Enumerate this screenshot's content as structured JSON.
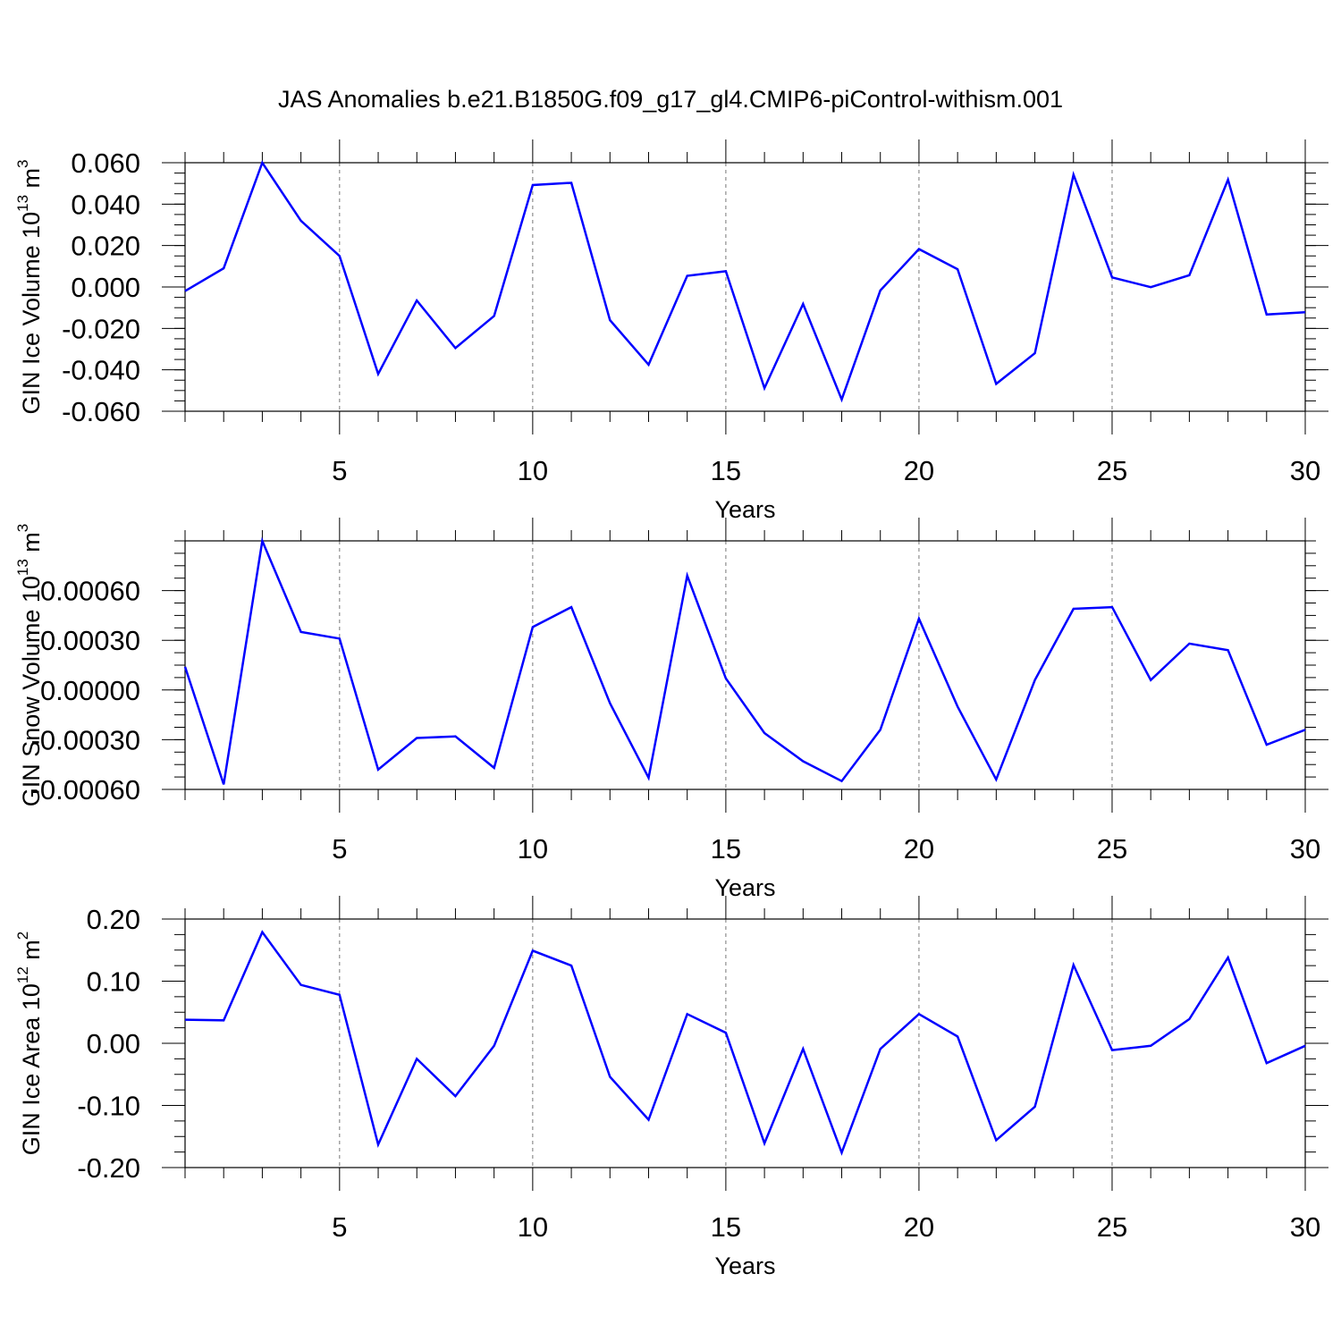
{
  "title": "JAS Anomalies b.e21.B1850G.f09_g17_gl4.CMIP6-piControl-withism.001",
  "colors": {
    "line": "#0000ff",
    "axis": "#000000",
    "grid": "#777777"
  },
  "chart_data": [
    {
      "type": "line",
      "ylabel": "GIN Ice Volume",
      "ylabel_unit_base": "10",
      "ylabel_unit_exp": "13",
      "ylabel_unit_suffix": "m",
      "ylabel_unit_suffix_exp": "3",
      "xlabel": "Years",
      "xlim": [
        1,
        30
      ],
      "ylim": [
        -0.06,
        0.06
      ],
      "yticks": [
        -0.06,
        -0.04,
        -0.02,
        0.0,
        0.02,
        0.04,
        0.06
      ],
      "ytick_labels": [
        "-0.060",
        "-0.040",
        "-0.020",
        "0.000",
        "0.020",
        "0.040",
        "0.060"
      ],
      "ytick_minor": 0.005,
      "xticks": [
        5,
        10,
        15,
        20,
        25,
        30
      ],
      "xtick_labels": [
        "5",
        "10",
        "15",
        "20",
        "25",
        "30"
      ],
      "grid_x": [
        5,
        10,
        15,
        20,
        25
      ],
      "series": [
        {
          "name": "GIN Ice Volume",
          "x": [
            1,
            2,
            3,
            4,
            5,
            6,
            7,
            8,
            9,
            10,
            11,
            12,
            13,
            14,
            15,
            16,
            17,
            18,
            19,
            20,
            21,
            22,
            23,
            24,
            25,
            26,
            27,
            28,
            29,
            30
          ],
          "values": [
            -0.002,
            0.009,
            0.06,
            0.032,
            0.015,
            -0.042,
            -0.0065,
            -0.0295,
            -0.014,
            0.0492,
            0.0503,
            -0.016,
            -0.0375,
            0.0054,
            0.0076,
            -0.0488,
            -0.0082,
            -0.0543,
            -0.0017,
            0.0183,
            0.0086,
            -0.0468,
            -0.032,
            0.0542,
            0.0046,
            -0.0001,
            0.0057,
            0.0518,
            -0.0133,
            -0.0122
          ]
        }
      ]
    },
    {
      "type": "line",
      "ylabel": "GIN Snow Volume",
      "ylabel_unit_base": "10",
      "ylabel_unit_exp": "13",
      "ylabel_unit_suffix": "m",
      "ylabel_unit_suffix_exp": "3",
      "xlabel": "Years",
      "xlim": [
        1,
        30
      ],
      "ylim": [
        -0.0006,
        0.0009
      ],
      "yticks": [
        -0.0006,
        -0.0003,
        0.0,
        0.0003,
        0.0006
      ],
      "ytick_labels": [
        "-0.00060",
        "-0.00030",
        "0.00000",
        "0.00030",
        "0.00060"
      ],
      "ytick_minor": 7.5e-05,
      "xticks": [
        5,
        10,
        15,
        20,
        25,
        30
      ],
      "xtick_labels": [
        "5",
        "10",
        "15",
        "20",
        "25",
        "30"
      ],
      "grid_x": [
        5,
        10,
        15,
        20,
        25
      ],
      "series": [
        {
          "name": "GIN Snow Volume",
          "x": [
            1,
            2,
            3,
            4,
            5,
            6,
            7,
            8,
            9,
            10,
            11,
            12,
            13,
            14,
            15,
            16,
            17,
            18,
            19,
            20,
            21,
            22,
            23,
            24,
            25,
            26,
            27,
            28,
            29,
            30
          ],
          "values": [
            0.00014,
            -0.00057,
            0.0009,
            0.00035,
            0.00031,
            -0.00048,
            -0.00029,
            -0.00028,
            -0.00047,
            0.00038,
            0.0005,
            -8e-05,
            -0.00053,
            0.00069,
            7e-05,
            -0.00026,
            -0.00043,
            -0.00055,
            -0.00024,
            0.00043,
            -0.0001,
            -0.00054,
            6e-05,
            0.00049,
            0.0005,
            6e-05,
            0.00028,
            0.00024,
            -0.00033,
            -0.00024
          ]
        }
      ]
    },
    {
      "type": "line",
      "ylabel": "GIN Ice Area",
      "ylabel_unit_base": "10",
      "ylabel_unit_exp": "12",
      "ylabel_unit_suffix": "m",
      "ylabel_unit_suffix_exp": "2",
      "xlabel": "Years",
      "xlim": [
        1,
        30
      ],
      "ylim": [
        -0.2,
        0.2
      ],
      "yticks": [
        -0.2,
        -0.1,
        0.0,
        0.1,
        0.2
      ],
      "ytick_labels": [
        "-0.20",
        "-0.10",
        "0.00",
        "0.10",
        "0.20"
      ],
      "ytick_minor": 0.025,
      "xticks": [
        5,
        10,
        15,
        20,
        25,
        30
      ],
      "xtick_labels": [
        "5",
        "10",
        "15",
        "20",
        "25",
        "30"
      ],
      "grid_x": [
        5,
        10,
        15,
        20,
        25
      ],
      "series": [
        {
          "name": "GIN Ice Area",
          "x": [
            1,
            2,
            3,
            4,
            5,
            6,
            7,
            8,
            9,
            10,
            11,
            12,
            13,
            14,
            15,
            16,
            17,
            18,
            19,
            20,
            21,
            22,
            23,
            24,
            25,
            26,
            27,
            28,
            29,
            30
          ],
          "values": [
            0.038,
            0.037,
            0.179,
            0.094,
            0.078,
            -0.163,
            -0.025,
            -0.085,
            -0.004,
            0.149,
            0.125,
            -0.054,
            -0.123,
            0.047,
            0.017,
            -0.161,
            -0.009,
            -0.176,
            -0.009,
            0.047,
            0.011,
            -0.156,
            -0.102,
            0.126,
            -0.011,
            -0.004,
            0.039,
            0.138,
            -0.032,
            -0.004
          ]
        }
      ]
    }
  ]
}
